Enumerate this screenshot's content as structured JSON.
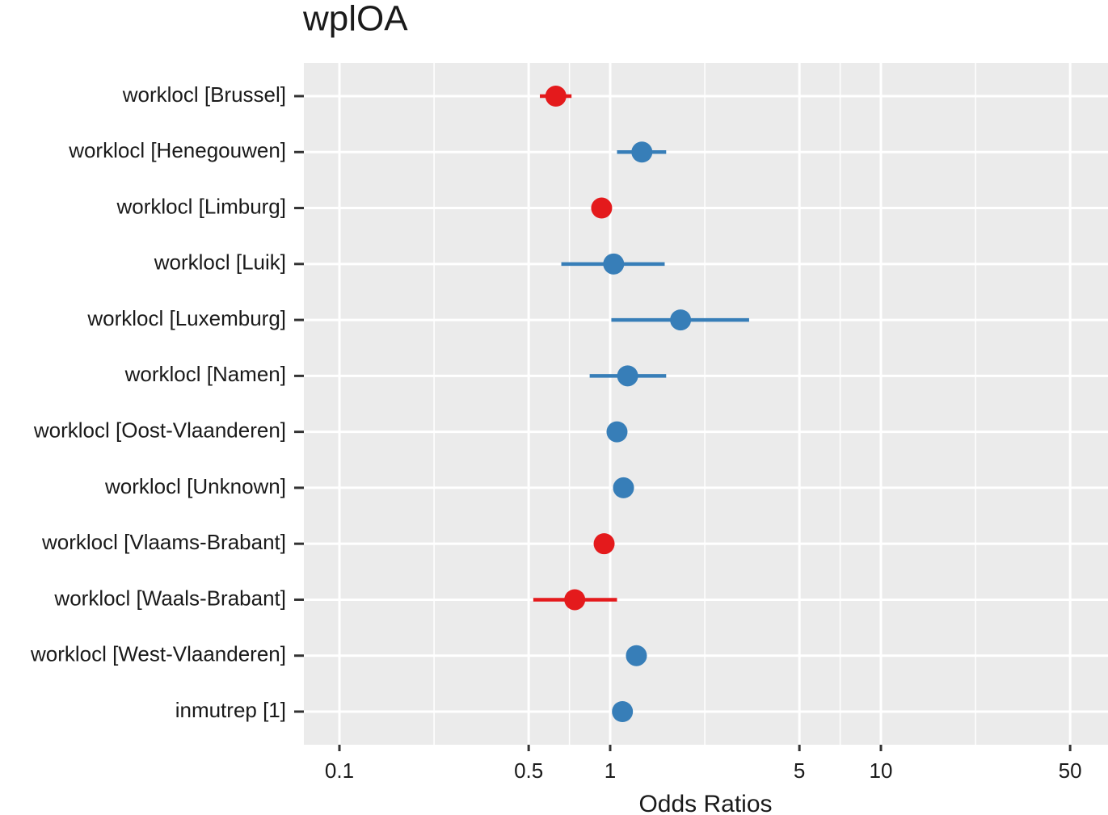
{
  "chart_data": {
    "type": "forest",
    "title": "wplOA",
    "x_label": "Odds Ratios",
    "categories": [
      "worklocl [Brussel]",
      "worklocl [Henegouwen]",
      "worklocl [Limburg]",
      "worklocl [Luik]",
      "worklocl [Luxemburg]",
      "worklocl [Namen]",
      "worklocl [Oost-Vlaanderen]",
      "worklocl [Unknown]",
      "worklocl [Vlaams-Brabant]",
      "worklocl [Waals-Brabant]",
      "worklocl [West-Vlaanderen]",
      "inmutrep [1]"
    ],
    "values": [
      0.63,
      1.31,
      0.93,
      1.03,
      1.82,
      1.16,
      1.06,
      1.12,
      0.95,
      0.74,
      1.25,
      1.11
    ],
    "ci_low": [
      0.55,
      1.06,
      0.88,
      0.66,
      1.01,
      0.84,
      1.0,
      1.05,
      0.9,
      0.52,
      1.18,
      1.06
    ],
    "ci_high": [
      0.72,
      1.61,
      0.98,
      1.59,
      3.26,
      1.61,
      1.13,
      1.2,
      1.01,
      1.06,
      1.33,
      1.17
    ],
    "colors": [
      "#e41a1c",
      "#377eb8",
      "#e41a1c",
      "#377eb8",
      "#377eb8",
      "#377eb8",
      "#377eb8",
      "#377eb8",
      "#e41a1c",
      "#e41a1c",
      "#377eb8",
      "#377eb8"
    ],
    "x_log": true,
    "xlim": [
      0.0739,
      69
    ],
    "xticks": [
      0.1,
      0.5,
      1,
      5,
      10,
      50
    ],
    "grid": true
  }
}
